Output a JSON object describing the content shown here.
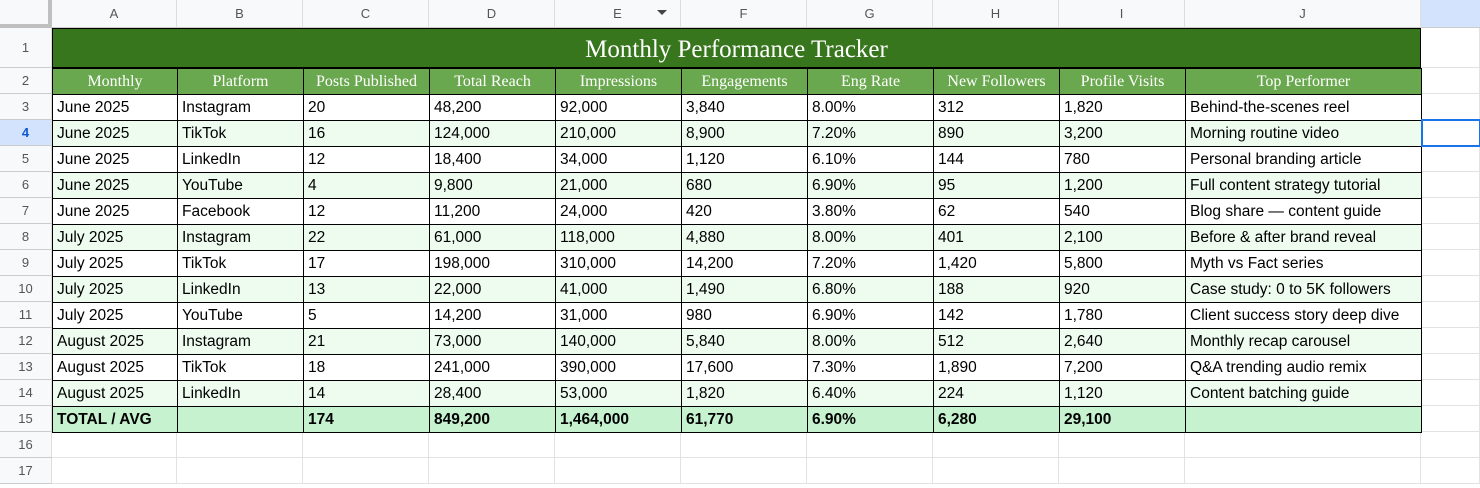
{
  "column_letters": [
    "A",
    "B",
    "C",
    "D",
    "E",
    "F",
    "G",
    "H",
    "I",
    "J"
  ],
  "row_numbers": [
    1,
    2,
    3,
    4,
    5,
    6,
    7,
    8,
    9,
    10,
    11,
    12,
    13,
    14,
    15,
    16,
    17
  ],
  "sheet": {
    "title": "Monthly Performance Tracker",
    "headers": [
      "Monthly",
      "Platform",
      "Posts Published",
      "Total Reach",
      "Impressions",
      "Engagements",
      "Eng Rate",
      "New Followers",
      "Profile Visits",
      "Top Performer"
    ],
    "rows": [
      [
        "June 2025",
        "Instagram",
        "20",
        "48,200",
        "92,000",
        "3,840",
        "8.00%",
        "312",
        "1,820",
        "Behind-the-scenes reel"
      ],
      [
        "June 2025",
        "TikTok",
        "16",
        "124,000",
        "210,000",
        "8,900",
        "7.20%",
        "890",
        "3,200",
        "Morning routine video"
      ],
      [
        "June 2025",
        "LinkedIn",
        "12",
        "18,400",
        "34,000",
        "1,120",
        "6.10%",
        "144",
        "780",
        "Personal branding article"
      ],
      [
        "June 2025",
        "YouTube",
        "4",
        "9,800",
        "21,000",
        "680",
        "6.90%",
        "95",
        "1,200",
        "Full content strategy tutorial"
      ],
      [
        "June 2025",
        "Facebook",
        "12",
        "11,200",
        "24,000",
        "420",
        "3.80%",
        "62",
        "540",
        "Blog share — content guide"
      ],
      [
        "July 2025",
        "Instagram",
        "22",
        "61,000",
        "118,000",
        "4,880",
        "8.00%",
        "401",
        "2,100",
        "Before & after brand reveal"
      ],
      [
        "July 2025",
        "TikTok",
        "17",
        "198,000",
        "310,000",
        "14,200",
        "7.20%",
        "1,420",
        "5,800",
        "Myth vs Fact series"
      ],
      [
        "July 2025",
        "LinkedIn",
        "13",
        "22,000",
        "41,000",
        "1,490",
        "6.80%",
        "188",
        "920",
        "Case study: 0 to 5K followers"
      ],
      [
        "July 2025",
        "YouTube",
        "5",
        "14,200",
        "31,000",
        "980",
        "6.90%",
        "142",
        "1,780",
        "Client success story deep dive"
      ],
      [
        "August 2025",
        "Instagram",
        "21",
        "73,000",
        "140,000",
        "5,840",
        "8.00%",
        "512",
        "2,640",
        "Monthly recap carousel"
      ],
      [
        "August 2025",
        "TikTok",
        "18",
        "241,000",
        "390,000",
        "17,600",
        "7.30%",
        "1,890",
        "7,200",
        "Q&A trending audio remix"
      ],
      [
        "August 2025",
        "LinkedIn",
        "14",
        "28,400",
        "53,000",
        "1,820",
        "6.40%",
        "224",
        "1,120",
        "Content batching guide"
      ]
    ],
    "total": {
      "label": "TOTAL / AVG",
      "cells": [
        "174",
        "849,200",
        "1,464,000",
        "61,770",
        "6.90%",
        "6,280",
        "29,100"
      ]
    }
  }
}
